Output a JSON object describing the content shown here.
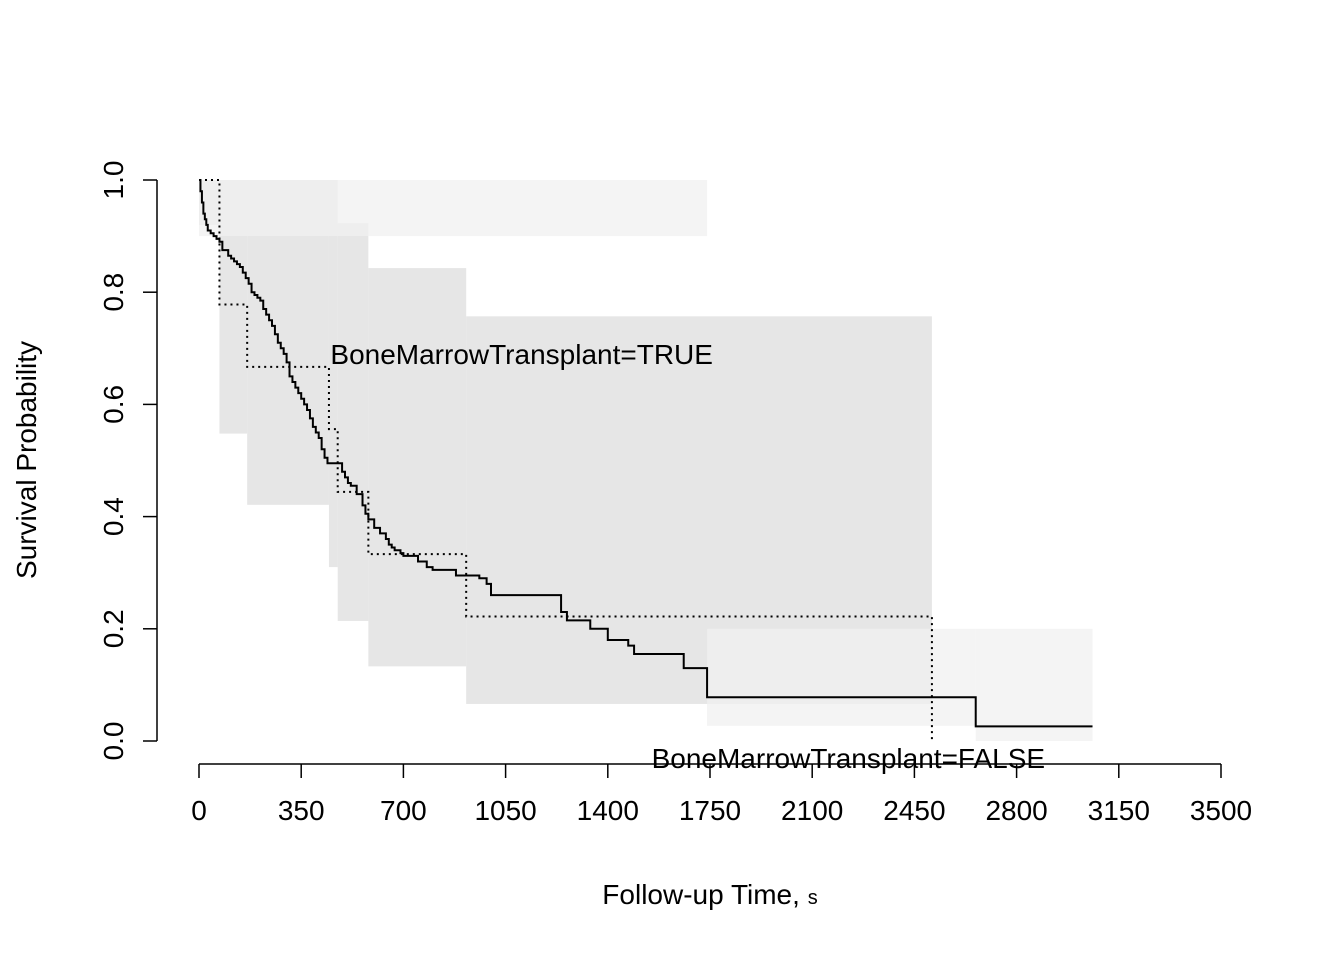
{
  "chart_data": {
    "type": "line",
    "xlabel": "Follow-up Time, ",
    "xlabel_unit": "s",
    "ylabel": "Survival Probability",
    "xlim": [
      0,
      3500
    ],
    "ylim": [
      0,
      1
    ],
    "x_ticks": [
      0,
      350,
      700,
      1050,
      1400,
      1750,
      2100,
      2450,
      2800,
      3150,
      3500
    ],
    "x_tick_labels": [
      "0",
      "350",
      "700",
      "1050",
      "1400",
      "1750",
      "2100",
      "2450",
      "2800",
      "3150",
      "3500"
    ],
    "y_ticks": [
      0,
      0.2,
      0.4,
      0.6,
      0.8,
      1.0
    ],
    "y_tick_labels": [
      "0.0",
      "0.2",
      "0.4",
      "0.6",
      "0.8",
      "1.0"
    ],
    "grid": false,
    "legend": "none",
    "annotations": [
      {
        "text": "BoneMarrowTransplant=TRUE",
        "x": 450,
        "y": 0.69
      },
      {
        "text": "BoneMarrowTransplant=FALSE",
        "x": 1550,
        "y": -0.03
      }
    ],
    "series": [
      {
        "line_style": "dotted",
        "color": "#000000",
        "band_color": "#e2e2e2",
        "x": [
          0,
          70,
          165,
          445,
          475,
          580,
          915,
          2510
        ],
        "y": [
          1.0,
          0.778,
          0.667,
          0.556,
          0.444,
          0.333,
          0.222,
          0.0
        ],
        "ci_x": [
          0,
          70,
          165,
          445,
          475,
          580,
          915,
          2510
        ],
        "ci_upper": [
          1.0,
          1.0,
          1.0,
          1.0,
          0.923,
          0.843,
          0.757,
          0.757
        ],
        "ci_lower": [
          0.92,
          0.548,
          0.421,
          0.31,
          0.214,
          0.133,
          0.066,
          0.066
        ]
      },
      {
        "line_style": "solid",
        "color": "#000000",
        "band_color": "#f0f0f0",
        "x": [
          0,
          5,
          10,
          15,
          20,
          25,
          30,
          40,
          50,
          60,
          70,
          80,
          100,
          110,
          120,
          130,
          140,
          150,
          160,
          170,
          180,
          190,
          200,
          210,
          220,
          230,
          240,
          250,
          260,
          270,
          280,
          290,
          300,
          310,
          320,
          330,
          340,
          350,
          360,
          370,
          380,
          390,
          400,
          410,
          420,
          430,
          440,
          490,
          500,
          510,
          520,
          540,
          560,
          570,
          580,
          600,
          620,
          640,
          650,
          660,
          670,
          690,
          700,
          750,
          780,
          800,
          880,
          960,
          985,
          1000,
          1240,
          1260,
          1340,
          1400,
          1470,
          1490,
          1660,
          1740,
          2660,
          3060
        ],
        "y": [
          1.0,
          0.98,
          0.96,
          0.94,
          0.93,
          0.92,
          0.91,
          0.905,
          0.9,
          0.895,
          0.89,
          0.875,
          0.865,
          0.86,
          0.855,
          0.85,
          0.845,
          0.835,
          0.825,
          0.815,
          0.8,
          0.795,
          0.79,
          0.785,
          0.77,
          0.76,
          0.75,
          0.74,
          0.725,
          0.71,
          0.7,
          0.69,
          0.675,
          0.65,
          0.64,
          0.63,
          0.62,
          0.61,
          0.6,
          0.59,
          0.575,
          0.56,
          0.55,
          0.54,
          0.52,
          0.505,
          0.495,
          0.48,
          0.47,
          0.46,
          0.455,
          0.44,
          0.42,
          0.405,
          0.395,
          0.38,
          0.37,
          0.36,
          0.35,
          0.345,
          0.34,
          0.335,
          0.33,
          0.32,
          0.31,
          0.305,
          0.295,
          0.29,
          0.28,
          0.26,
          0.23,
          0.215,
          0.2,
          0.18,
          0.17,
          0.155,
          0.13,
          0.078,
          0.026,
          0.026
        ],
        "ci_x": [
          0,
          1740,
          2660,
          3060
        ],
        "ci_upper": [
          1.0,
          0.2,
          0.2,
          0.165
        ],
        "ci_lower": [
          0.9,
          0.027,
          0.0,
          0.0
        ]
      }
    ]
  }
}
